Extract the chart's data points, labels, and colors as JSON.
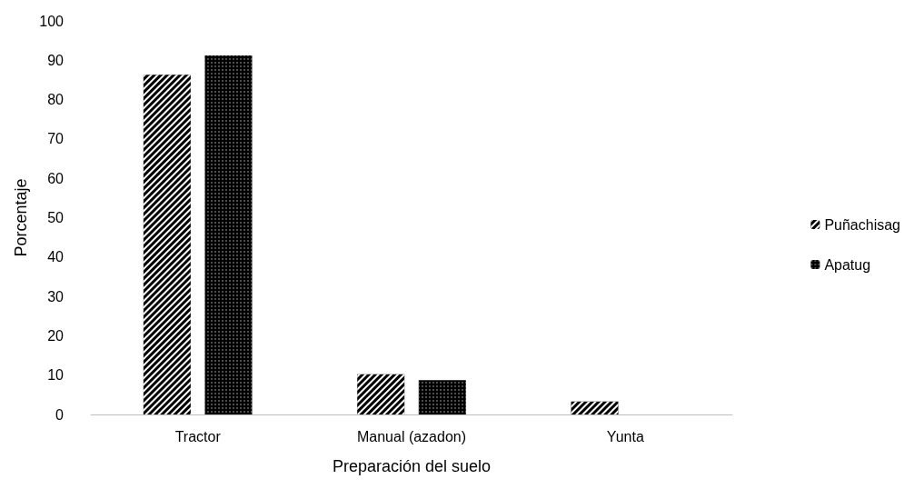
{
  "chart_data": {
    "type": "bar",
    "xlabel": "Preparación del suelo",
    "ylabel": "Porcentaje",
    "categories": [
      "Tractor",
      "Manual (azadon)",
      "Yunta"
    ],
    "series": [
      {
        "name": "Puñachisag",
        "color": "#000000",
        "values": [
          86.3,
          10.2,
          3.3
        ]
      },
      {
        "name": "Apatug",
        "color": "#000000",
        "values": [
          91.2,
          8.7,
          0
        ]
      }
    ],
    "ylim": [
      0,
      100
    ],
    "yticks": [
      0,
      10,
      20,
      30,
      40,
      50,
      60,
      70,
      80,
      90,
      100
    ],
    "grid": false,
    "legend": "right"
  }
}
